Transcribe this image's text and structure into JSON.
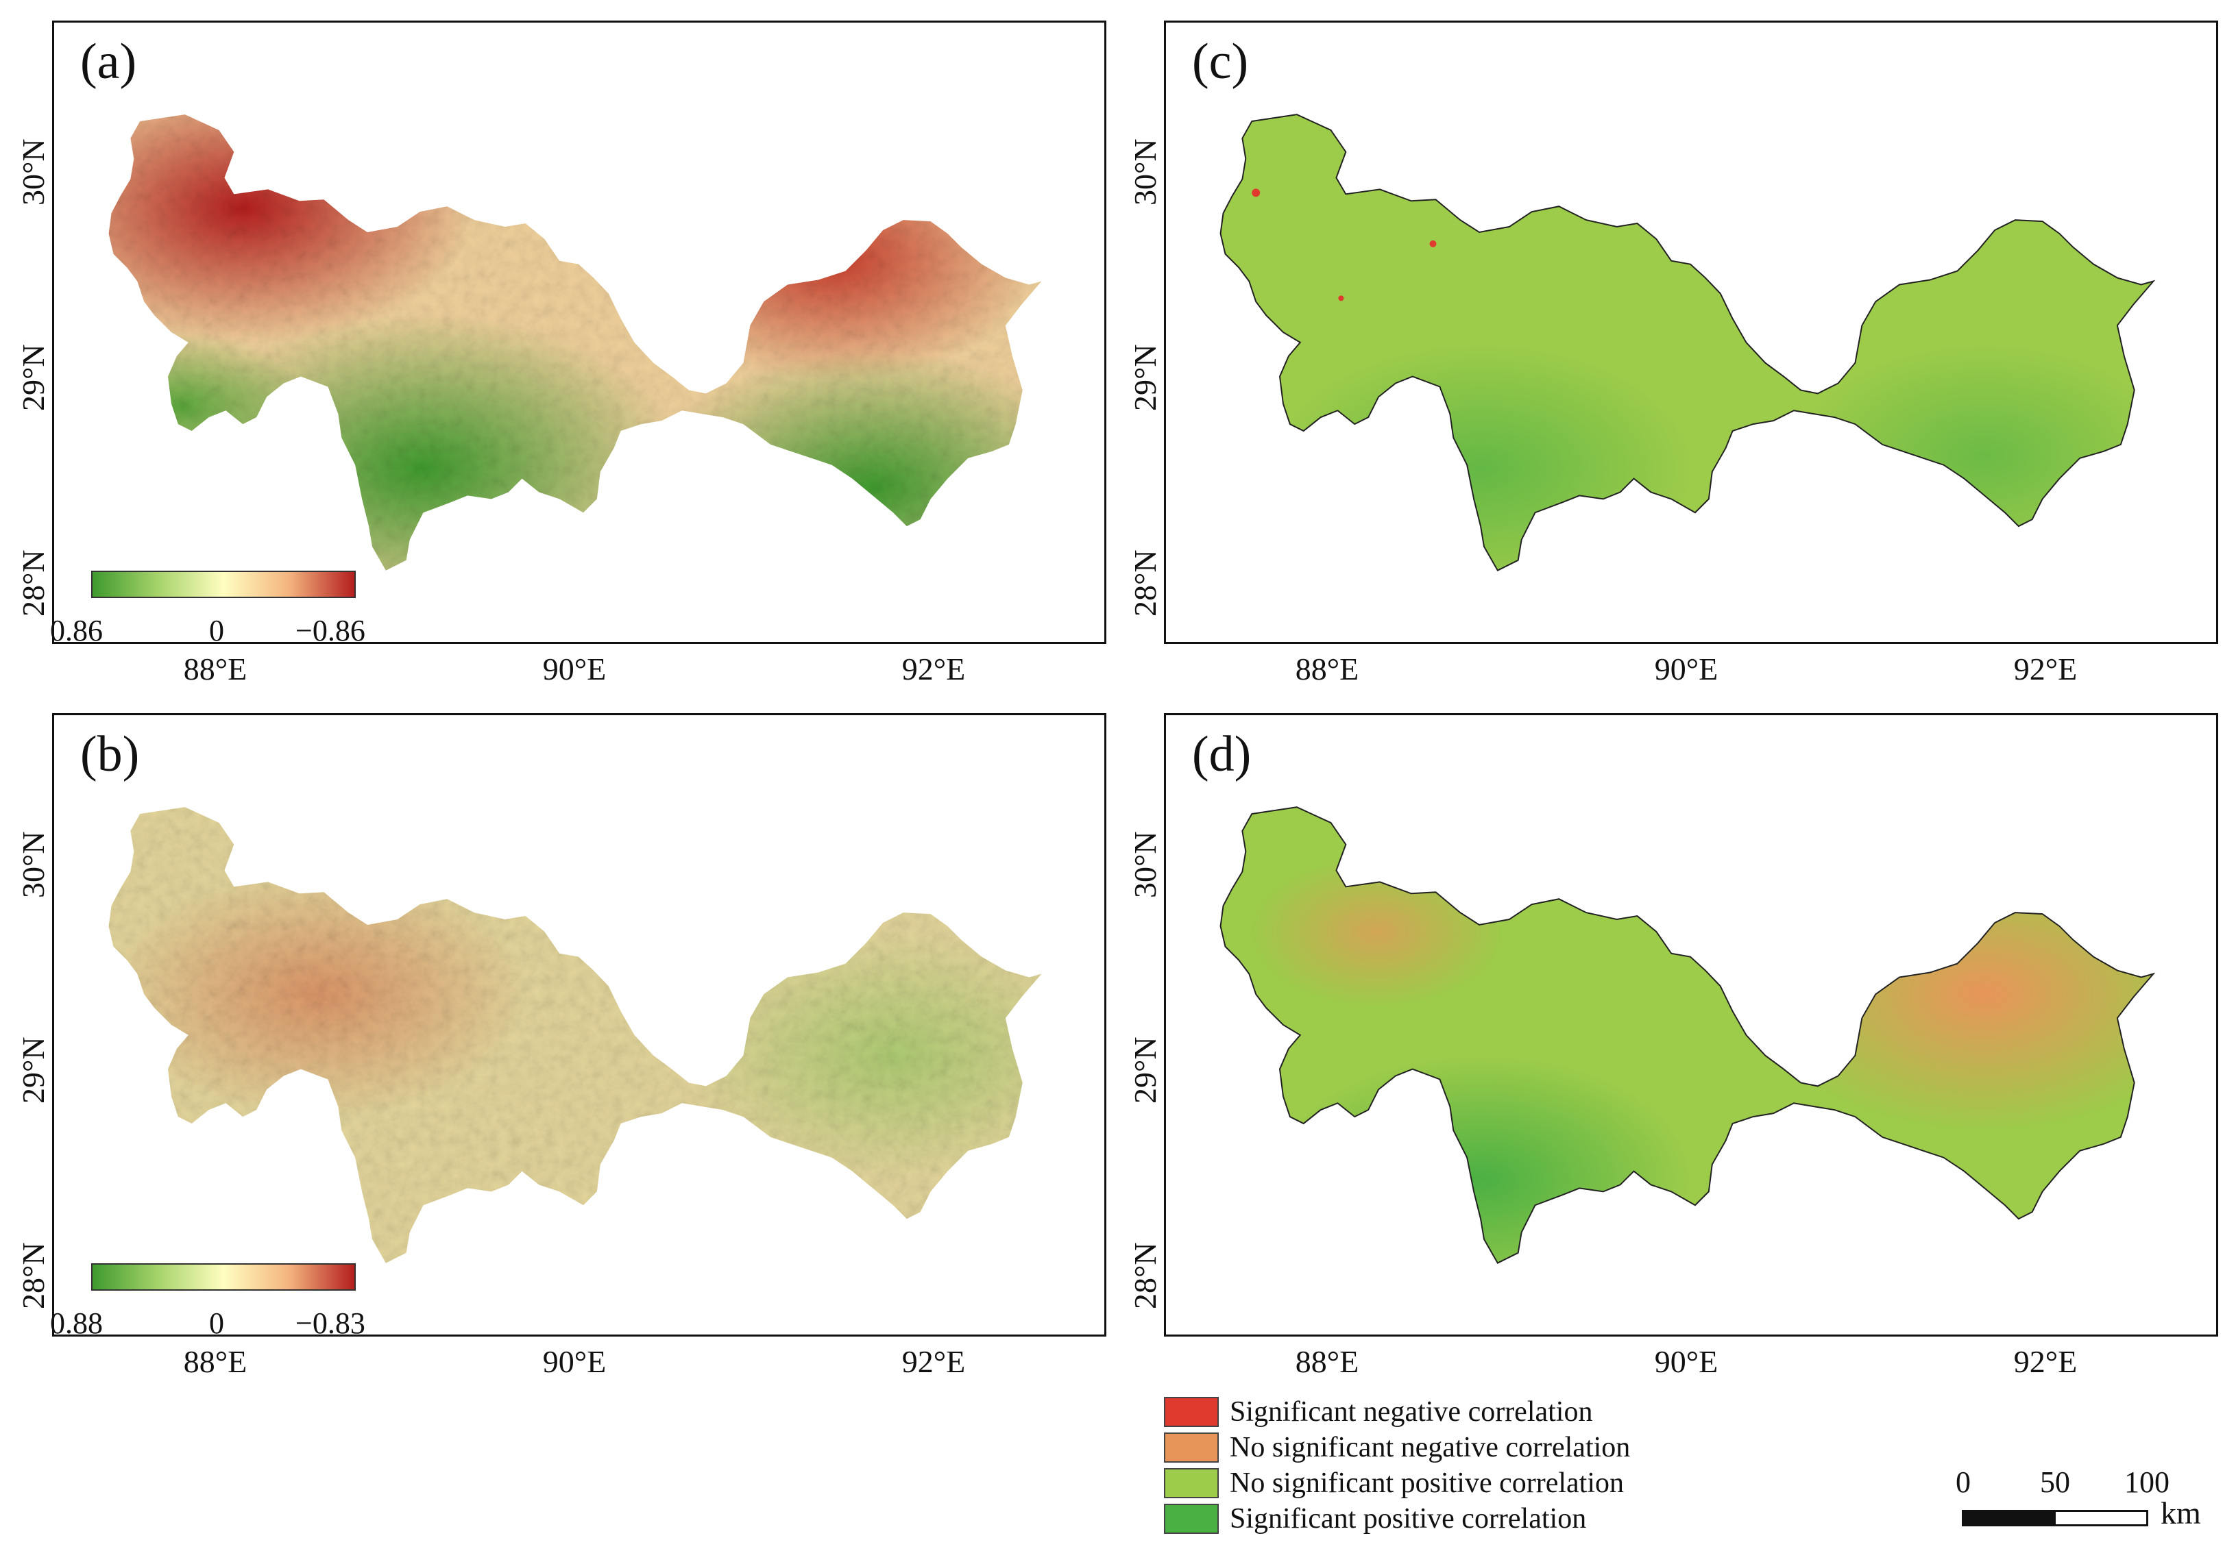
{
  "panels": [
    {
      "id": "a",
      "label": "(a)",
      "type": "continuous",
      "legend_min": "0.86",
      "legend_mid": "0",
      "legend_max": "−0.86"
    },
    {
      "id": "b",
      "label": "(b)",
      "type": "continuous",
      "legend_min": "0.88",
      "legend_mid": "0",
      "legend_max": "−0.83"
    },
    {
      "id": "c",
      "label": "(c)",
      "type": "categorical",
      "dominant": "No significant positive correlation"
    },
    {
      "id": "d",
      "label": "(d)",
      "type": "categorical",
      "dominant": "mixed"
    }
  ],
  "axes": {
    "lat_labels": [
      "30°N",
      "29°N",
      "28°N"
    ],
    "lon_labels": [
      "88°E",
      "90°E",
      "92°E"
    ]
  },
  "colorbar": {
    "colors": [
      "#3f9a2e",
      "#a6d36a",
      "#fffec0",
      "#f4b47f",
      "#b41e1e"
    ]
  },
  "legend": {
    "items": [
      {
        "label": "Significant negative correlation",
        "color": "#e03a2e"
      },
      {
        "label": "No significant negative correlation",
        "color": "#e8955a"
      },
      {
        "label": "No significant positive correlation",
        "color": "#9dcb4a"
      },
      {
        "label": "Significant positive correlation",
        "color": "#4bb043"
      }
    ]
  },
  "scalebar": {
    "ticks": [
      "0",
      "50",
      "100"
    ],
    "unit": "km"
  }
}
